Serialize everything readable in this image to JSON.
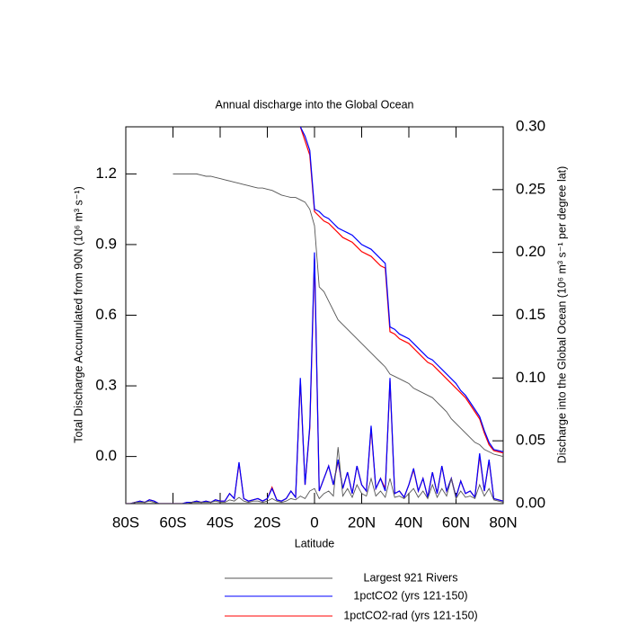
{
  "chart_data": {
    "type": "line",
    "title": "Annual discharge into the Global Ocean",
    "xlabel": "Latitude",
    "ylabel": "Total Discharge Accumulated from 90N (10⁶ m³ s⁻¹)",
    "y2label": "Discharge into the Global Ocean (10⁶ m³ s⁻¹ per degree lat)",
    "xlim": [
      -80,
      80
    ],
    "xticks": [
      {
        "value": -80,
        "label": "80S"
      },
      {
        "value": -60,
        "label": "60S"
      },
      {
        "value": -40,
        "label": "40S"
      },
      {
        "value": -20,
        "label": "20S"
      },
      0,
      {
        "value": 20,
        "label": "20N"
      },
      {
        "value": 40,
        "label": "40N"
      },
      {
        "value": 60,
        "label": "60N"
      },
      {
        "value": 80,
        "label": "80N"
      }
    ],
    "ylim": [
      -0.2,
      1.4
    ],
    "yticks": [
      {
        "value": 0,
        "label": "0.0"
      },
      0.3,
      0.6,
      0.9,
      1.2
    ],
    "y2lim": [
      0,
      0.3
    ],
    "y2ticks": [
      {
        "value": 0,
        "label": "0.00"
      },
      {
        "value": 0.05,
        "label": "0.05"
      },
      {
        "value": 0.1,
        "label": "0.10"
      },
      0.15,
      {
        "value": 0.2,
        "label": "0.20"
      },
      0.25,
      {
        "value": 0.3,
        "label": "0.30"
      }
    ],
    "x": [
      -80,
      -78,
      -76,
      -74,
      -72,
      -70,
      -68,
      -66,
      -64,
      -62,
      -60,
      -58,
      -56,
      -54,
      -52,
      -50,
      -48,
      -46,
      -44,
      -42,
      -40,
      -38,
      -36,
      -34,
      -32,
      -30,
      -28,
      -26,
      -24,
      -22,
      -20,
      -18,
      -16,
      -14,
      -12,
      -10,
      -8,
      -6,
      -4,
      -2,
      0,
      2,
      4,
      6,
      8,
      10,
      12,
      14,
      16,
      18,
      20,
      22,
      24,
      26,
      28,
      30,
      32,
      34,
      36,
      38,
      40,
      42,
      44,
      46,
      48,
      50,
      52,
      54,
      56,
      58,
      60,
      62,
      64,
      66,
      68,
      70,
      72,
      74,
      76,
      78,
      80
    ],
    "series": [
      {
        "name": "Largest 921 Rivers",
        "color": "#555555",
        "values": [
          null,
          null,
          null,
          null,
          null,
          null,
          null,
          null,
          null,
          null,
          1.2,
          1.2,
          1.2,
          1.2,
          1.2,
          1.2,
          1.195,
          1.19,
          1.19,
          1.185,
          1.18,
          1.175,
          1.17,
          1.165,
          1.16,
          1.155,
          1.15,
          1.145,
          1.14,
          1.14,
          1.135,
          1.13,
          1.12,
          1.11,
          1.105,
          1.1,
          1.1,
          1.09,
          1.08,
          1.05,
          0.98,
          0.72,
          0.7,
          0.66,
          0.62,
          0.58,
          0.56,
          0.54,
          0.52,
          0.5,
          0.48,
          0.46,
          0.44,
          0.42,
          0.4,
          0.38,
          0.35,
          0.34,
          0.33,
          0.32,
          0.31,
          0.29,
          0.28,
          0.27,
          0.26,
          0.25,
          0.23,
          0.21,
          0.19,
          0.16,
          0.14,
          0.12,
          0.1,
          0.08,
          0.06,
          0.05,
          0.03,
          0.02,
          0.01,
          0.005,
          0.0
        ],
        "values_y2": [
          0,
          0,
          0.001,
          0.001,
          0.001,
          0.002,
          0.001,
          0,
          0,
          0,
          0,
          0,
          0,
          0,
          0.001,
          0.001,
          0.001,
          0.001,
          0.001,
          0.002,
          0.001,
          0.001,
          0.003,
          0.002,
          0.005,
          0.002,
          0.001,
          0.002,
          0.002,
          0.001,
          0.002,
          0.004,
          0.002,
          0.001,
          0.002,
          0.004,
          0.003,
          0.006,
          0.004,
          0.01,
          0.012,
          0.004,
          0.008,
          0.01,
          0.006,
          0.045,
          0.006,
          0.012,
          0.005,
          0.015,
          0.008,
          0.006,
          0.02,
          0.006,
          0.01,
          0.005,
          0.02,
          0.005,
          0.006,
          0.004,
          0.008,
          0.012,
          0.005,
          0.01,
          0.004,
          0.015,
          0.005,
          0.012,
          0.006,
          0.02,
          0.004,
          0.01,
          0.005,
          0.006,
          0.004,
          0.015,
          0.006,
          0.012,
          0.003,
          0.002,
          0.001
        ]
      },
      {
        "name": "1pctCO2 (yrs 121-150)",
        "color": "#0000ff",
        "values": [
          null,
          null,
          null,
          null,
          null,
          null,
          null,
          null,
          null,
          null,
          null,
          null,
          null,
          null,
          null,
          null,
          null,
          null,
          null,
          null,
          null,
          null,
          null,
          null,
          null,
          null,
          null,
          null,
          null,
          null,
          null,
          null,
          null,
          null,
          null,
          null,
          null,
          1.4,
          1.36,
          1.3,
          1.05,
          1.04,
          1.02,
          1.01,
          0.99,
          0.97,
          0.96,
          0.95,
          0.94,
          0.92,
          0.9,
          0.89,
          0.88,
          0.86,
          0.84,
          0.82,
          0.55,
          0.54,
          0.52,
          0.51,
          0.5,
          0.48,
          0.46,
          0.44,
          0.42,
          0.41,
          0.39,
          0.37,
          0.35,
          0.33,
          0.31,
          0.28,
          0.26,
          0.23,
          0.2,
          0.17,
          0.11,
          0.06,
          0.03,
          0.025,
          0.02
        ],
        "values_y2": [
          0,
          0,
          0.001,
          0.002,
          0.001,
          0.003,
          0.002,
          0,
          0,
          0,
          0,
          0,
          0,
          0.001,
          0.001,
          0.002,
          0.001,
          0.002,
          0.001,
          0.003,
          0.002,
          0.002,
          0.008,
          0.004,
          0.033,
          0.004,
          0.002,
          0.003,
          0.004,
          0.002,
          0.004,
          0.012,
          0.003,
          0.002,
          0.004,
          0.01,
          0.005,
          0.1,
          0.015,
          0.062,
          0.2,
          0.01,
          0.02,
          0.03,
          0.015,
          0.035,
          0.012,
          0.025,
          0.008,
          0.03,
          0.015,
          0.01,
          0.062,
          0.012,
          0.02,
          0.01,
          0.1,
          0.008,
          0.01,
          0.005,
          0.015,
          0.028,
          0.01,
          0.02,
          0.005,
          0.025,
          0.008,
          0.03,
          0.01,
          0.02,
          0.005,
          0.018,
          0.008,
          0.01,
          0.005,
          0.04,
          0.01,
          0.035,
          0.004,
          0.003,
          0.002
        ]
      },
      {
        "name": "1pctCO2-rad (yrs 121-150)",
        "color": "#ff0000",
        "values": [
          null,
          null,
          null,
          null,
          null,
          null,
          null,
          null,
          null,
          null,
          null,
          null,
          null,
          null,
          null,
          null,
          null,
          null,
          null,
          null,
          null,
          null,
          null,
          null,
          null,
          null,
          null,
          null,
          null,
          null,
          null,
          null,
          null,
          null,
          null,
          null,
          null,
          1.4,
          1.34,
          1.28,
          1.04,
          1.02,
          1.0,
          0.99,
          0.97,
          0.95,
          0.93,
          0.92,
          0.91,
          0.89,
          0.87,
          0.86,
          0.85,
          0.83,
          0.81,
          0.8,
          0.53,
          0.52,
          0.5,
          0.49,
          0.48,
          0.46,
          0.44,
          0.42,
          0.4,
          0.39,
          0.37,
          0.35,
          0.33,
          0.31,
          0.29,
          0.27,
          0.25,
          0.22,
          0.19,
          0.16,
          0.1,
          0.05,
          0.025,
          0.02,
          0.015
        ],
        "values_y2": [
          0,
          0,
          0.001,
          0.002,
          0.001,
          0.003,
          0.002,
          0,
          0,
          0,
          0,
          0,
          0,
          0.001,
          0.001,
          0.002,
          0.001,
          0.002,
          0.001,
          0.003,
          0.002,
          0.002,
          0.008,
          0.004,
          0.032,
          0.004,
          0.002,
          0.003,
          0.004,
          0.002,
          0.004,
          0.013,
          0.003,
          0.002,
          0.004,
          0.01,
          0.005,
          0.098,
          0.015,
          0.06,
          0.195,
          0.01,
          0.02,
          0.03,
          0.015,
          0.034,
          0.012,
          0.025,
          0.008,
          0.03,
          0.015,
          0.01,
          0.06,
          0.012,
          0.02,
          0.012,
          0.098,
          0.008,
          0.01,
          0.005,
          0.015,
          0.027,
          0.01,
          0.02,
          0.005,
          0.025,
          0.008,
          0.03,
          0.01,
          0.02,
          0.005,
          0.018,
          0.008,
          0.01,
          0.005,
          0.038,
          0.01,
          0.034,
          0.004,
          0.003,
          0.002
        ]
      }
    ]
  }
}
